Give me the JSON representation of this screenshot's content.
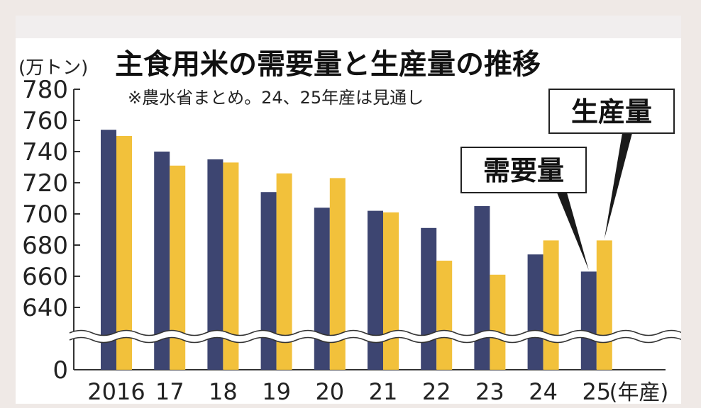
{
  "chart_data": {
    "type": "bar",
    "title": "主食用米の需要量と生産量の推移",
    "y_unit_label": "(万トン)",
    "note": "※農水省まとめ。24、25年産は見通し",
    "x_unit_label": "(年産)",
    "categories": [
      "2016",
      "17",
      "18",
      "19",
      "20",
      "21",
      "22",
      "23",
      "24",
      "25"
    ],
    "series": [
      {
        "name": "需要量",
        "color": "#3d4571",
        "values": [
          754,
          740,
          735,
          714,
          704,
          702,
          691,
          705,
          674,
          663
        ]
      },
      {
        "name": "生産量",
        "color": "#f2c13b",
        "values": [
          750,
          731,
          733,
          726,
          723,
          701,
          670,
          661,
          683,
          683
        ]
      }
    ],
    "y_ticks": [
      780,
      760,
      740,
      720,
      700,
      680,
      660,
      640
    ],
    "y_zero_label": "0",
    "ylim": [
      630,
      780
    ],
    "axis_break": true,
    "grid": false,
    "legend": "callout boxes pointing to 2025 bars (top-right)"
  }
}
